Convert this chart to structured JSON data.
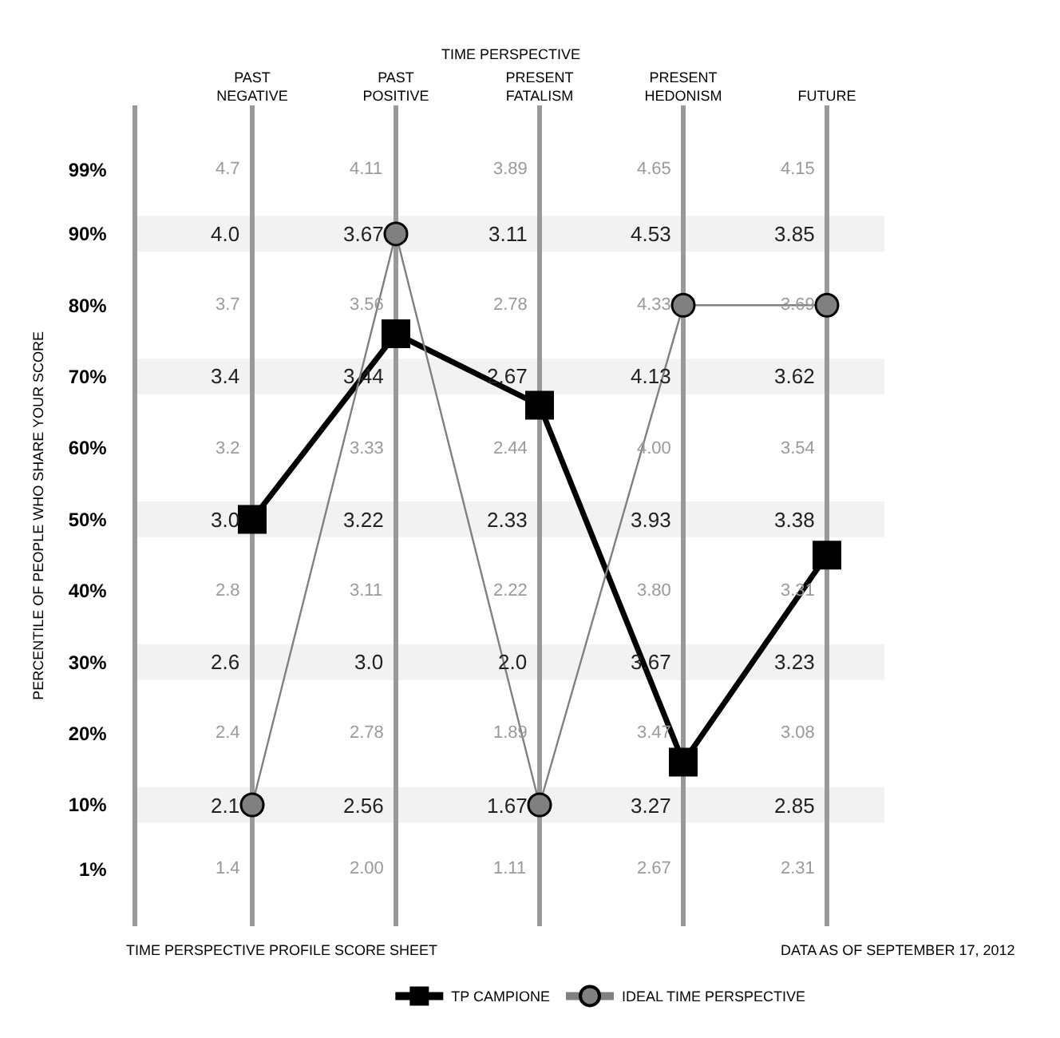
{
  "chart_data": {
    "type": "line",
    "xlabel": "TIME PERSPECTIVE",
    "ylabel": "PERCENTILE OF PEOPLE WHO SHARE YOUR SCORE",
    "categories": [
      "PAST NEGATIVE",
      "PAST POSITIVE",
      "PRESENT FATALISM",
      "PRESENT HEDONISM",
      "FUTURE"
    ],
    "ylim": [
      -7,
      108
    ],
    "yticks": [
      {
        "value": 1,
        "label": "1%"
      },
      {
        "value": 10,
        "label": "10%"
      },
      {
        "value": 20,
        "label": "20%"
      },
      {
        "value": 30,
        "label": "30%"
      },
      {
        "value": 40,
        "label": "40%"
      },
      {
        "value": 50,
        "label": "50%"
      },
      {
        "value": 60,
        "label": "60%"
      },
      {
        "value": 70,
        "label": "70%"
      },
      {
        "value": 80,
        "label": "80%"
      },
      {
        "value": 90,
        "label": "90%"
      },
      {
        "value": 99,
        "label": "99%"
      }
    ],
    "grid": "x",
    "legend": "bottom",
    "series": [
      {
        "name": "TP CAMPIONE",
        "color": "#000000",
        "marker": "square",
        "line_style": "solid",
        "values": [
          50,
          76,
          66,
          16,
          45
        ]
      },
      {
        "name": "IDEAL TIME PERSPECTIVE",
        "color": "#808080",
        "marker": "circle",
        "line_style": "solid",
        "values": [
          10,
          90,
          10,
          80,
          80
        ]
      }
    ],
    "bands": [
      {
        "axis": "y",
        "from": 87.5,
        "to": 92.5,
        "color": "#f2f2f2"
      },
      {
        "axis": "y",
        "from": 67.5,
        "to": 72.5,
        "color": "#f2f2f2"
      },
      {
        "axis": "y",
        "from": 47.5,
        "to": 52.5,
        "color": "#f2f2f2"
      },
      {
        "axis": "y",
        "from": 27.5,
        "to": 32.5,
        "color": "#f2f2f2"
      },
      {
        "axis": "y",
        "from": 7.5,
        "to": 12.5,
        "color": "#f2f2f2"
      }
    ],
    "annotations": [
      "4.7",
      "4.0",
      "3.7",
      "3.4",
      "3.2",
      "3.0",
      "2.8",
      "2.6",
      "2.4",
      "2.1",
      "1.4",
      "4.11",
      "3.67",
      "3.56",
      "3.44",
      "3.33",
      "3.22",
      "3.11",
      "3.0",
      "2.78",
      "2.56",
      "2.00",
      "3.89",
      "3.11",
      "2.78",
      "2.67",
      "2.44",
      "2.33",
      "2.22",
      "2.0",
      "1.89",
      "1.67",
      "1.11",
      "4.65",
      "4.53",
      "4.33",
      "4.13",
      "4.00",
      "3.93",
      "3.80",
      "3.67",
      "3.47",
      "3.27",
      "2.67",
      "4.15",
      "3.85",
      "3.69",
      "3.62",
      "3.54",
      "3.38",
      "3.31",
      "3.23",
      "3.08",
      "2.85",
      "2.31",
      "TIME PERSPECTIVE PROFILE SCORE SHEET",
      "DATA AS OF SEPTEMBER 17, 2012"
    ]
  }
}
